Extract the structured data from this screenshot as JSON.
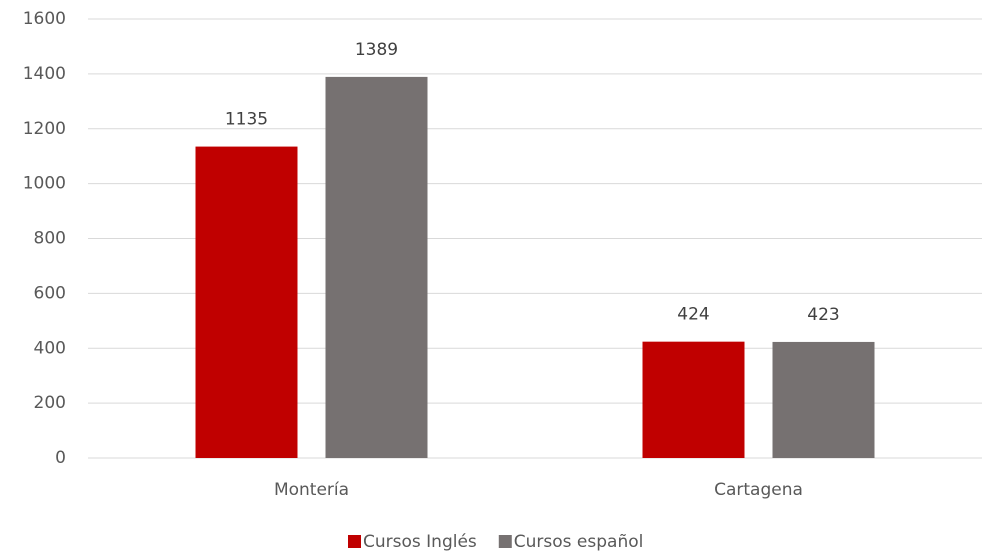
{
  "chart_data": {
    "type": "bar",
    "categories": [
      "Montería",
      "Cartagena"
    ],
    "series": [
      {
        "name": "Cursos Inglés",
        "color": "#c00000",
        "values": [
          1135,
          424
        ]
      },
      {
        "name": "Cursos español",
        "color": "#767171",
        "values": [
          1389,
          423
        ]
      }
    ],
    "ylim": [
      0,
      1600
    ],
    "yticks": [
      0,
      200,
      400,
      600,
      800,
      1000,
      1200,
      1400,
      1600
    ],
    "grid": true,
    "legend": "bottom",
    "data_labels": true
  }
}
